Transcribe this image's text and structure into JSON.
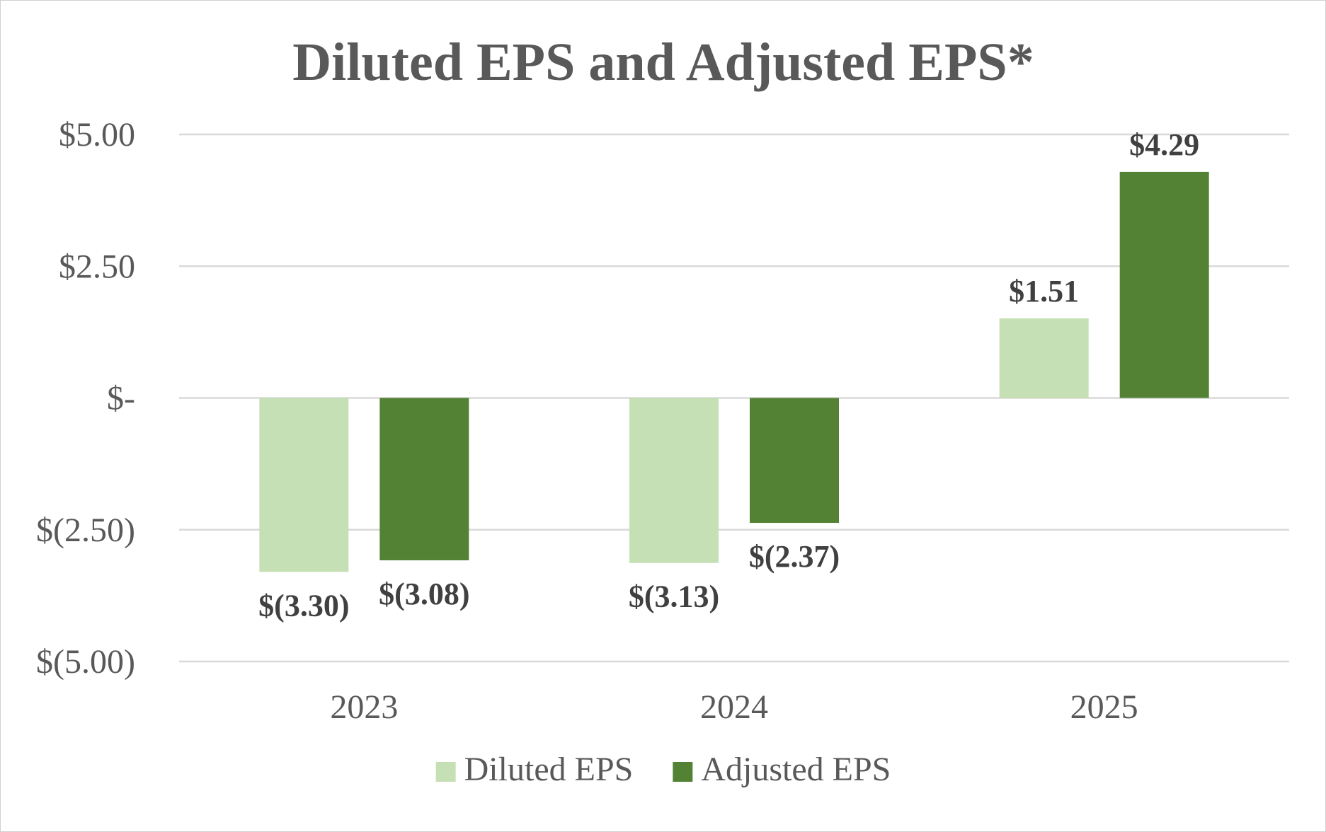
{
  "chart_data": {
    "type": "bar",
    "title": "Diluted EPS and Adjusted EPS*",
    "xlabel": "",
    "ylabel": "",
    "categories": [
      "2023",
      "2024",
      "2025"
    ],
    "series": [
      {
        "name": "Diluted EPS",
        "values": [
          -3.3,
          -3.13,
          1.51
        ],
        "labels": [
          "$(3.30)",
          "$(3.13)",
          "$1.51"
        ],
        "color": "#c5e0b4"
      },
      {
        "name": "Adjusted EPS",
        "values": [
          -3.08,
          -2.37,
          4.29
        ],
        "labels": [
          "$(3.08)",
          "$(2.37)",
          "$4.29"
        ],
        "color": "#548235"
      }
    ],
    "ylim": [
      -5.0,
      5.0
    ],
    "yticks": [
      5.0,
      2.5,
      0,
      -2.5,
      -5.0
    ],
    "ytick_labels": [
      "$5.00",
      "$2.50",
      "$-",
      "$(2.50)",
      "$(5.00)"
    ],
    "grid": true,
    "legend_position": "bottom"
  }
}
